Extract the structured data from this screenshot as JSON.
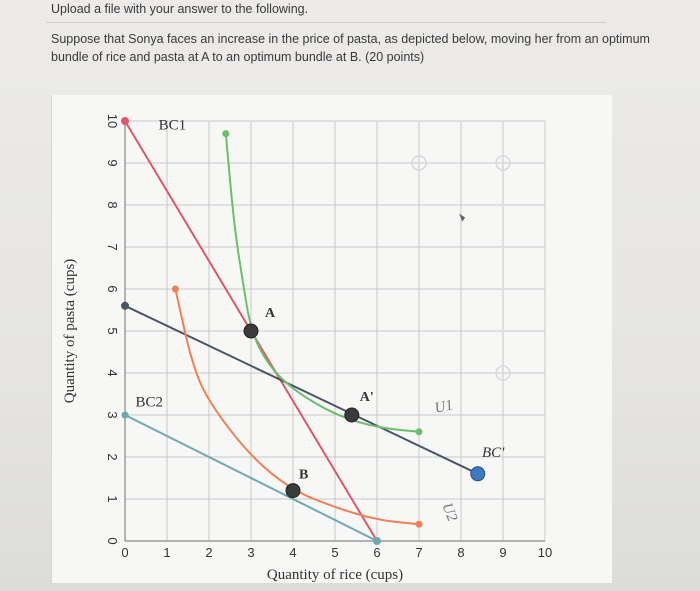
{
  "header": {
    "title": "Upload a file with your answer to the following.",
    "question": "Suppose that Sonya faces an increase in the price of pasta, as depicted below, moving her from an optimum bundle of rice and pasta at A to an optimum bundle at B. (20 points)"
  },
  "chart_data": {
    "type": "line",
    "xlabel": "Quantity of rice (cups)",
    "ylabel": "Quantity of pasta (cups)",
    "xlim": [
      0,
      10
    ],
    "ylim": [
      0,
      10
    ],
    "xticks": [
      "0",
      "1",
      "2",
      "3",
      "4",
      "5",
      "6",
      "7",
      "8",
      "9",
      "10"
    ],
    "yticks": [
      "0",
      "1",
      "2",
      "3",
      "4",
      "5",
      "6",
      "7",
      "8",
      "9",
      "10"
    ],
    "grid": true,
    "colors": {
      "bc1": "#e0576b",
      "bc2": "#6aaab0",
      "bcprime": "#4a5468",
      "u1": "#6cbf6a",
      "u2": "#ef8056",
      "point": "#3b3b3b",
      "endpoint_blue": "#3f78c0"
    },
    "lines": [
      {
        "name": "BC1",
        "points": [
          [
            0,
            10
          ],
          [
            6,
            0
          ]
        ]
      },
      {
        "name": "BC2",
        "points": [
          [
            0,
            3
          ],
          [
            6,
            0
          ]
        ]
      },
      {
        "name": "BC'",
        "points": [
          [
            0,
            5.6
          ],
          [
            8.4,
            1.6
          ]
        ]
      }
    ],
    "curves": [
      {
        "name": "U1",
        "points": [
          [
            2.4,
            9.7
          ],
          [
            2.6,
            7.5
          ],
          [
            2.8,
            6.2
          ],
          [
            3,
            5
          ],
          [
            3.4,
            4.2
          ],
          [
            4,
            3.6
          ],
          [
            5,
            3
          ],
          [
            6,
            2.7
          ],
          [
            7,
            2.6
          ]
        ]
      },
      {
        "name": "U2",
        "points": [
          [
            1.2,
            6
          ],
          [
            1.6,
            4.2
          ],
          [
            2,
            3.3
          ],
          [
            3,
            2
          ],
          [
            4,
            1.2
          ],
          [
            5,
            0.8
          ],
          [
            6,
            0.5
          ],
          [
            7,
            0.4
          ]
        ]
      }
    ],
    "points": [
      {
        "label": "A",
        "x": 3,
        "y": 5
      },
      {
        "label": "A'",
        "x": 5.4,
        "y": 3
      },
      {
        "label": "B",
        "x": 4,
        "y": 1.2
      }
    ],
    "labels": {
      "bc1": "BC1",
      "bc2": "BC2",
      "bcprime": "BC'",
      "u1": "U1",
      "u2": "U2"
    }
  }
}
